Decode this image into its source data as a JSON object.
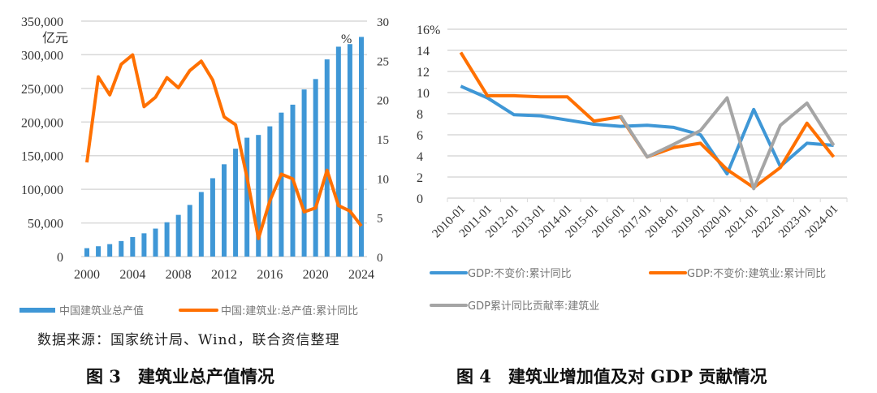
{
  "chart_data": [
    {
      "type": "bar+line",
      "title": "",
      "caption": "图 3　建筑业总产值情况",
      "source": "数据来源：国家统计局、Wind，联合资信整理",
      "y_left_unit": "亿元",
      "y_right_unit": "%",
      "ylim_left": [
        0,
        350000
      ],
      "ylim_right": [
        0,
        30
      ],
      "y_left_ticks": [
        "0",
        "50,000",
        "100,000",
        "150,000",
        "200,000",
        "250,000",
        "300,000",
        "350,000"
      ],
      "y_right_ticks": [
        "0",
        "5",
        "10",
        "15",
        "20",
        "25",
        "30"
      ],
      "x_ticks": [
        "2000",
        "2004",
        "2008",
        "2012",
        "2016",
        "2020",
        "2024"
      ],
      "grid": true,
      "legend_position": "bottom",
      "categories": [
        2000,
        2001,
        2002,
        2003,
        2004,
        2005,
        2006,
        2007,
        2008,
        2009,
        2010,
        2011,
        2012,
        2013,
        2014,
        2015,
        2016,
        2017,
        2018,
        2019,
        2020,
        2021,
        2022,
        2023,
        2024
      ],
      "series": [
        {
          "name": "中国建筑业总产值",
          "type": "bar",
          "axis": "left",
          "color": "#3f97d6",
          "values": [
            12500,
            15400,
            18500,
            23100,
            29000,
            34600,
            41600,
            51000,
            62000,
            76800,
            96000,
            116500,
            137200,
            160400,
            176700,
            180800,
            193600,
            214000,
            225800,
            248400,
            263900,
            293100,
            312000,
            315900,
            326500
          ]
        },
        {
          "name": "中国:建筑业:总产值:累计同比",
          "type": "line",
          "axis": "right",
          "color": "#ff7000",
          "values": [
            12.0,
            22.9,
            20.6,
            24.5,
            25.7,
            19.1,
            20.3,
            22.8,
            21.5,
            23.7,
            24.9,
            22.5,
            17.8,
            16.8,
            10.1,
            2.3,
            7.1,
            10.5,
            9.9,
            5.7,
            6.2,
            11.0,
            6.5,
            5.8,
            3.9
          ]
        }
      ]
    },
    {
      "type": "line",
      "title": "",
      "caption": "图 4　建筑业增加值及对 GDP 贡献情况",
      "ylim": [
        0,
        16
      ],
      "y_ticks": [
        "0",
        "2",
        "4",
        "6",
        "8",
        "10",
        "12",
        "14",
        "16%"
      ],
      "grid": true,
      "legend_position": "bottom",
      "categories": [
        "2010-01",
        "2011-01",
        "2012-01",
        "2013-01",
        "2014-01",
        "2015-01",
        "2016-01",
        "2017-01",
        "2018-01",
        "2019-01",
        "2020-01",
        "2021-01",
        "2022-01",
        "2023-01",
        "2024-01"
      ],
      "series": [
        {
          "name": "GDP:不变价:累计同比",
          "color": "#3f97d6",
          "values": [
            10.6,
            9.5,
            7.9,
            7.8,
            7.4,
            7.0,
            6.8,
            6.9,
            6.7,
            6.0,
            2.3,
            8.4,
            3.0,
            5.2,
            5.0
          ]
        },
        {
          "name": "GDP:不变价:建筑业:累计同比",
          "color": "#ff7000",
          "values": [
            13.8,
            9.7,
            9.7,
            9.6,
            9.6,
            7.3,
            7.7,
            3.9,
            4.8,
            5.2,
            2.7,
            1.0,
            2.9,
            7.1,
            3.9
          ]
        },
        {
          "name": "GDP累计同比贡献率:建筑业",
          "color": "#a5a5a5",
          "values": [
            null,
            null,
            null,
            null,
            null,
            null,
            7.8,
            3.9,
            5.1,
            6.4,
            9.5,
            0.9,
            6.9,
            9.0,
            5.0
          ]
        }
      ]
    }
  ]
}
